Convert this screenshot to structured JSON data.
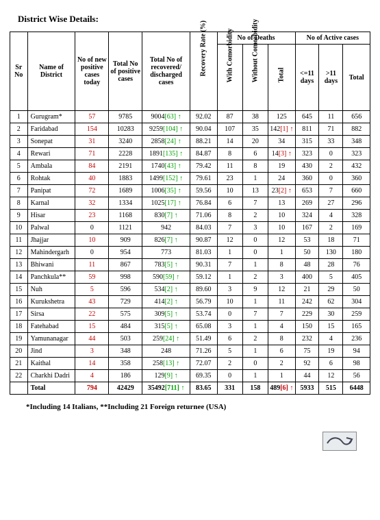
{
  "title": "District Wise Details:",
  "columns": {
    "sr": "Sr No",
    "name": "Name of District",
    "newpos": "No of new positive cases today",
    "totpos": "Total No of positive cases",
    "recov": "Total No of recovered/ discharged cases",
    "rate": "Recovery Rate (%)",
    "deaths_group": "No of Deaths",
    "with_co": "With Comorbidity",
    "wo_co": "Without Comorbidity",
    "d_total": "Total",
    "active_group": "No of Active cases",
    "le11": "<=11 days",
    "gt11": ">11 days",
    "a_total": "Total"
  },
  "rows": [
    {
      "sr": "1",
      "name": "Gurugram*",
      "new": "57",
      "totpos": "9785",
      "recov": "9004",
      "recov_b": "63",
      "rate": "92.02",
      "wc": "87",
      "woc": "38",
      "dt": "125",
      "le": "645",
      "gt": "11",
      "at": "656"
    },
    {
      "sr": "2",
      "name": "Faridabad",
      "new": "154",
      "totpos": "10283",
      "recov": "9259",
      "recov_b": "104",
      "rate": "90.04",
      "wc": "107",
      "woc": "35",
      "dt": "142",
      "dt_b": "1",
      "le": "811",
      "gt": "71",
      "at": "882"
    },
    {
      "sr": "3",
      "name": "Sonepat",
      "new": "31",
      "totpos": "3240",
      "recov": "2858",
      "recov_b": "24",
      "rate": "88.21",
      "wc": "14",
      "woc": "20",
      "dt": "34",
      "le": "315",
      "gt": "33",
      "at": "348"
    },
    {
      "sr": "4",
      "name": "Rewari",
      "new": "71",
      "totpos": "2228",
      "recov": "1891",
      "recov_b": "135",
      "rate": "84.87",
      "wc": "8",
      "woc": "6",
      "dt": "14",
      "dt_b": "3",
      "le": "323",
      "gt": "0",
      "at": "323"
    },
    {
      "sr": "5",
      "name": "Ambala",
      "new": "84",
      "totpos": "2191",
      "recov": "1740",
      "recov_b": "43",
      "rate": "79.42",
      "wc": "11",
      "woc": "8",
      "dt": "19",
      "le": "430",
      "gt": "2",
      "at": "432"
    },
    {
      "sr": "6",
      "name": "Rohtak",
      "new": "40",
      "totpos": "1883",
      "recov": "1499",
      "recov_b": "152",
      "rate": "79.61",
      "wc": "23",
      "woc": "1",
      "dt": "24",
      "le": "360",
      "gt": "0",
      "at": "360"
    },
    {
      "sr": "7",
      "name": "Panipat",
      "new": "72",
      "totpos": "1689",
      "recov": "1006",
      "recov_b": "35",
      "rate": "59.56",
      "wc": "10",
      "woc": "13",
      "dt": "23",
      "dt_b": "2",
      "le": "653",
      "gt": "7",
      "at": "660"
    },
    {
      "sr": "8",
      "name": "Karnal",
      "new": "32",
      "totpos": "1334",
      "recov": "1025",
      "recov_b": "17",
      "rate": "76.84",
      "wc": "6",
      "woc": "7",
      "dt": "13",
      "le": "269",
      "gt": "27",
      "at": "296"
    },
    {
      "sr": "9",
      "name": "Hisar",
      "new": "23",
      "totpos": "1168",
      "recov": "830",
      "recov_b": "7",
      "rate": "71.06",
      "wc": "8",
      "woc": "2",
      "dt": "10",
      "le": "324",
      "gt": "4",
      "at": "328"
    },
    {
      "sr": "10",
      "name": "Palwal",
      "new": "0",
      "new_black": true,
      "totpos": "1121",
      "recov": "942",
      "rate": "84.03",
      "wc": "7",
      "woc": "3",
      "dt": "10",
      "le": "167",
      "gt": "2",
      "at": "169"
    },
    {
      "sr": "11",
      "name": "Jhajjar",
      "new": "10",
      "totpos": "909",
      "recov": "826",
      "recov_b": "7",
      "rate": "90.87",
      "wc": "12",
      "woc": "0",
      "dt": "12",
      "le": "53",
      "gt": "18",
      "at": "71"
    },
    {
      "sr": "12",
      "name": "Mahindergarh",
      "new": "0",
      "new_black": true,
      "totpos": "954",
      "recov": "773",
      "rate": "81.03",
      "wc": "1",
      "woc": "0",
      "dt": "1",
      "le": "50",
      "gt": "130",
      "at": "180"
    },
    {
      "sr": "13",
      "name": "Bhiwani",
      "new": "11",
      "totpos": "867",
      "recov": "783",
      "recov_b": "5",
      "rate": "90.31",
      "wc": "7",
      "woc": "1",
      "dt": "8",
      "le": "48",
      "gt": "28",
      "at": "76"
    },
    {
      "sr": "14",
      "name": "Panchkula**",
      "new": "59",
      "totpos": "998",
      "recov": "590",
      "recov_b": "59",
      "rate": "59.12",
      "wc": "1",
      "woc": "2",
      "dt": "3",
      "le": "400",
      "gt": "5",
      "at": "405"
    },
    {
      "sr": "15",
      "name": "Nuh",
      "new": "5",
      "totpos": "596",
      "recov": "534",
      "recov_b": "2",
      "rate": "89.60",
      "wc": "3",
      "woc": "9",
      "dt": "12",
      "le": "21",
      "gt": "29",
      "at": "50"
    },
    {
      "sr": "16",
      "name": "Kurukshetra",
      "new": "43",
      "totpos": "729",
      "recov": "414",
      "recov_b": "2",
      "rate": "56.79",
      "wc": "10",
      "woc": "1",
      "dt": "11",
      "le": "242",
      "gt": "62",
      "at": "304"
    },
    {
      "sr": "17",
      "name": "Sirsa",
      "new": "22",
      "totpos": "575",
      "recov": "309",
      "recov_b": "5",
      "rate": "53.74",
      "wc": "0",
      "woc": "7",
      "dt": "7",
      "le": "229",
      "gt": "30",
      "at": "259"
    },
    {
      "sr": "18",
      "name": "Fatehabad",
      "new": "15",
      "totpos": "484",
      "recov": "315",
      "recov_b": "5",
      "rate": "65.08",
      "wc": "3",
      "woc": "1",
      "dt": "4",
      "le": "150",
      "gt": "15",
      "at": "165"
    },
    {
      "sr": "19",
      "name": "Yamunanagar",
      "new": "44",
      "totpos": "503",
      "recov": "259",
      "recov_b": "24",
      "rate": "51.49",
      "wc": "6",
      "woc": "2",
      "dt": "8",
      "le": "232",
      "gt": "4",
      "at": "236"
    },
    {
      "sr": "20",
      "name": "Jind",
      "new": "3",
      "totpos": "348",
      "recov": "248",
      "rate": "71.26",
      "wc": "5",
      "woc": "1",
      "dt": "6",
      "le": "75",
      "gt": "19",
      "at": "94"
    },
    {
      "sr": "21",
      "name": "Kaithal",
      "new": "14",
      "totpos": "358",
      "recov": "258",
      "recov_b": "13",
      "rate": "72.07",
      "wc": "2",
      "woc": "0",
      "dt": "2",
      "le": "92",
      "gt": "6",
      "at": "98"
    },
    {
      "sr": "22",
      "name": "Charkhi Dadri",
      "new": "4",
      "totpos": "186",
      "recov": "129",
      "recov_b": "9",
      "rate": "69.35",
      "wc": "0",
      "woc": "1",
      "dt": "1",
      "le": "44",
      "gt": "12",
      "at": "56"
    }
  ],
  "total": {
    "label": "Total",
    "new": "794",
    "totpos": "42429",
    "recov": "35492",
    "recov_b": "711",
    "rate": "83.65",
    "wc": "331",
    "woc": "158",
    "dt": "489",
    "dt_b": "6",
    "le": "5933",
    "gt": "515",
    "at": "6448"
  },
  "footnote": "*Including 14 Italians, **Including 21 Foreign returnee (USA)",
  "colors": {
    "red": "#c00000",
    "green": "#00a000"
  },
  "colwidths": [
    "22",
    "60",
    "42",
    "42",
    "60",
    "34",
    "32",
    "32",
    "34",
    "30",
    "30",
    "34"
  ]
}
